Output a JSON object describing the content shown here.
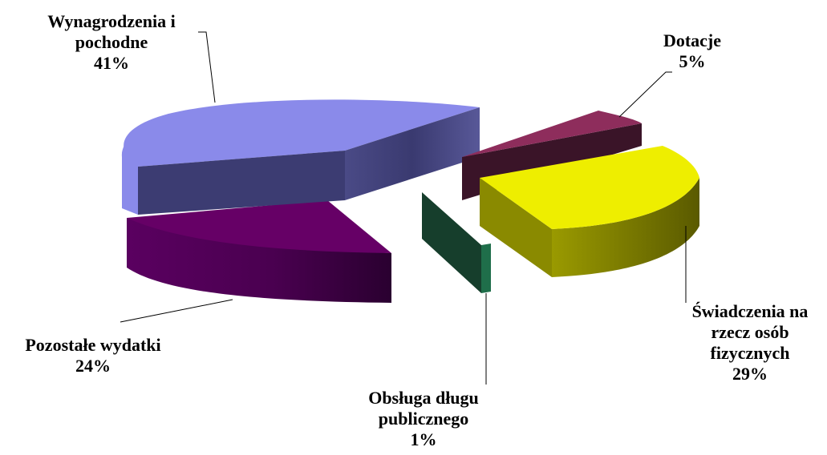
{
  "chart_data": {
    "type": "pie",
    "style": "3d-exploded",
    "slices": [
      {
        "label": "Wynagrodzenia i pochodne",
        "label_lines": [
          "Wynagrodzenia i",
          "pochodne"
        ],
        "value": 41,
        "value_label": "41%",
        "color": "#8A8AEA"
      },
      {
        "label": "Dotacje",
        "label_lines": [
          "Dotacje"
        ],
        "value": 5,
        "value_label": "5%",
        "color": "#8E2D5C"
      },
      {
        "label": "Świadczenia na rzecz osób fizycznych",
        "label_lines": [
          "Świadczenia na",
          "rzecz osób",
          "fizycznych"
        ],
        "value": 29,
        "value_label": "29%",
        "color": "#EEEE00"
      },
      {
        "label": "Obsługa długu publicznego",
        "label_lines": [
          "Obsługa długu",
          "publicznego"
        ],
        "value": 1,
        "value_label": "1%",
        "color": "#1F6E4A"
      },
      {
        "label": "Pozostałe wydatki",
        "label_lines": [
          "Pozostałe wydatki"
        ],
        "value": 24,
        "value_label": "24%",
        "color": "#6A0070"
      }
    ],
    "legend": "none",
    "data_labels": "outside-with-leader-lines"
  }
}
